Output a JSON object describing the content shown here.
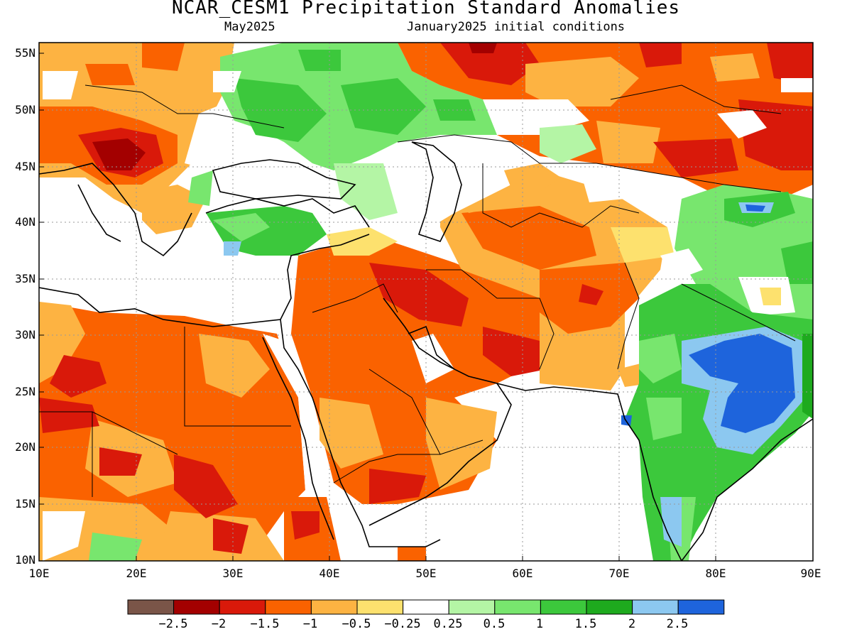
{
  "title": "NCAR_CESM1 Precipitation Standard Anomalies",
  "subtitle_left": "May2025",
  "subtitle_right": "January2025 initial conditions",
  "lat_labels": [
    "55N",
    "50N",
    "45N",
    "40N",
    "35N",
    "30N",
    "25N",
    "20N",
    "15N",
    "10N"
  ],
  "lon_labels": [
    "10E",
    "20E",
    "30E",
    "40E",
    "50E",
    "60E",
    "70E",
    "80E",
    "90E"
  ],
  "colorbar": {
    "colors": [
      "#7a5548",
      "#a30000",
      "#d9190a",
      "#fa6200",
      "#fdb342",
      "#fde16e",
      "#ffffff",
      "#b4f5a5",
      "#78e66e",
      "#3cc83c",
      "#1eaa1e",
      "#8cc8f0",
      "#1e64dc"
    ],
    "labels": [
      "−2.5",
      "−2",
      "−1.5",
      "−1",
      "−0.5",
      "−0.25",
      "0.25",
      "0.5",
      "1",
      "1.5",
      "2",
      "2.5"
    ]
  },
  "map_extent": {
    "lon": [
      10,
      90
    ],
    "lat": [
      10,
      56
    ]
  }
}
